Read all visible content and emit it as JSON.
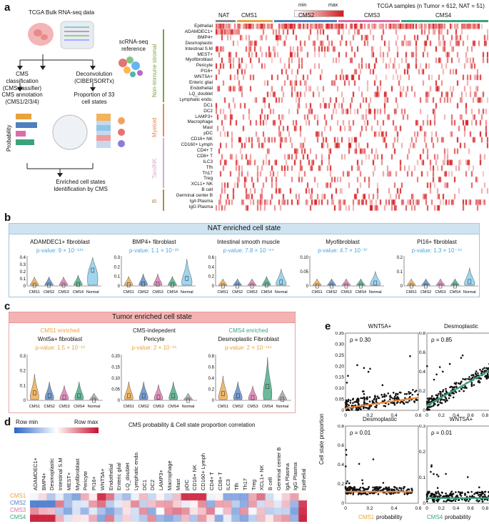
{
  "panel_a": {
    "label": "a",
    "tcga_title": "TCGA Bulk RNA-seq data",
    "scrna_title": "scRNA-seq reference",
    "cms_class": "CMS classification (CMSclassifier)",
    "deconv": "Deconvolution (CIBERSORTx)",
    "cms_annot": "CMS annotation (CMS1/2/3/4)",
    "proportion": "Proportion of 33 cell states",
    "probability": "Probability",
    "enriched": "Enriched cell states Identification by CMS",
    "heatmap_title": "TCGA samples (n Tumor = 612, NAT = 51)",
    "legend_min": "min",
    "legend_max": "max",
    "col_groups": [
      "NAT",
      "CMS1",
      "CMS2",
      "CMS3",
      "CMS4"
    ],
    "row_groups": [
      "Non-immune stromal",
      "Myeloid",
      "TandNK",
      "B"
    ],
    "rows": [
      "Epithelial",
      "ADAMDEC1+",
      "BMP4+",
      "Desmoplastic",
      "Intestinal S.M",
      "MEST+",
      "Myofibroblast",
      "Pericyte",
      "PI16+",
      "WNT5A+",
      "Enteric glial",
      "Endothelial",
      "LQ_doublet",
      "Lymphatic endo.",
      "DC1",
      "DC2",
      "LAMP3+",
      "Macrophage",
      "Mast",
      "pDC",
      "CD16+ NK",
      "CD160+ Lymph",
      "CD4+ T",
      "CD8+ T",
      "ILC3",
      "Tfh",
      "Th17",
      "Treg",
      "XCL1+ NK",
      "B cell",
      "Germinal center B",
      "IgA Plasma",
      "IgG Plasma"
    ]
  },
  "panel_b": {
    "label": "b",
    "banner": "NAT enriched cell state",
    "plots": [
      {
        "title": "ADAMDEC1+ fibroblast",
        "pvalue": "p-value: 9 × 10⁻¹³⁴",
        "yticks": [
          "0.4",
          "0.3",
          "0.2",
          "0.1",
          "0"
        ],
        "medians": [
          0.01,
          0.01,
          0.01,
          0.02,
          0.22
        ]
      },
      {
        "title": "BMP4+ fibroblast",
        "pvalue": "p-value: 1.1 × 10⁻²⁵",
        "yticks": [
          "0.3",
          "0.2",
          "0.1",
          "0"
        ],
        "medians": [
          0.01,
          0.02,
          0.02,
          0.01,
          0.08
        ]
      },
      {
        "title": "Intestinal smooth muscle",
        "pvalue": "p-value: 7.8 × 10⁻⁴⁴",
        "yticks": [
          "0.6",
          "0.4",
          "0.2",
          "0"
        ],
        "medians": [
          0.0,
          0.0,
          0.0,
          0.02,
          0.08
        ]
      },
      {
        "title": "Myofibroblast",
        "pvalue": "p-value: 4.7 × 10⁻³⁷",
        "yticks": [
          "0.10",
          "0.05",
          "0"
        ],
        "medians": [
          0.0,
          0.0,
          0.0,
          0.0,
          0.01
        ]
      },
      {
        "title": "PI16+ fibroblast",
        "pvalue": "p-value: 1.3 × 10⁻⁴⁶",
        "yticks": [
          "0.2",
          "0.1",
          "0"
        ],
        "medians": [
          0.0,
          0.0,
          0.0,
          0.0,
          0.03
        ]
      }
    ],
    "xticks": [
      "CMS1",
      "CMS2",
      "CMS3",
      "CMS4",
      "Normal"
    ]
  },
  "panel_c": {
    "label": "c",
    "banner": "Tumor enriched cell state",
    "plots": [
      {
        "header": "CMS1 enriched",
        "title": "Wnt5a+ fibroblast",
        "pvalue": "p-value: 1.5 × 10⁻¹³",
        "yticks": [
          "0.3",
          "0.2",
          "0.1",
          "0"
        ],
        "medians": [
          0.05,
          0.03,
          0.02,
          0.03,
          0.0
        ]
      },
      {
        "header": "CMS-indepedent",
        "title": "Pericyte",
        "pvalue": "p-value: 2 × 10⁻²⁵",
        "yticks": [
          "0.20",
          "0.15",
          "0.10",
          "0.05",
          "0"
        ],
        "medians": [
          0.02,
          0.02,
          0.015,
          0.02,
          0.0
        ]
      },
      {
        "header": "CMS4 enriched",
        "title": "Desmoplastic Fibroblast",
        "pvalue": "p-value: 2 × 10⁻¹¹⁵",
        "yticks": [
          "0.8",
          "0.6",
          "0.4",
          "0.2",
          "0"
        ],
        "medians": [
          0.12,
          0.08,
          0.05,
          0.25,
          0.02
        ]
      }
    ],
    "xticks": [
      "CMS1",
      "CMS2",
      "CMS3",
      "CMS4",
      "Normal"
    ]
  },
  "panel_d": {
    "label": "d",
    "legend_min": "Row min",
    "legend_max": "Row max",
    "title": "CMS probability & Cell state proportion correlation",
    "cols": [
      "ADAMDEC1+",
      "BMP4+",
      "Desmoplastic",
      "Intestinal S.M",
      "MEST+",
      "Myofibroblast",
      "Pericyte",
      "PI16+",
      "WNT5A+",
      "Endothelial",
      "Enteric glial",
      "LQ_doublet",
      "Lymphatic endo.",
      "DC1",
      "DC2",
      "LAMP3+",
      "Macrophage",
      "Mast",
      "pDC",
      "CD16+ NK",
      "CD160+ Lymph",
      "CD4+ T",
      "CD8+ T",
      "ILC3",
      "Tfh",
      "Th17",
      "Treg",
      "XCL1+ NK",
      "B cell",
      "Germinal center B",
      "IgA Plasma",
      "IgG Plasma",
      "Epithelial"
    ],
    "rows": [
      "CMS1",
      "CMS2",
      "CMS3",
      "CMS4"
    ],
    "row_colors": [
      "#e8a33d",
      "#4f7fbf",
      "#d86fa8",
      "#3aa37a"
    ]
  },
  "panel_e": {
    "label": "e",
    "ylabel": "Cell state proportion",
    "plots": [
      {
        "title": "WNT5A+",
        "rho": "ρ = 0.30",
        "xticks": [
          "0",
          "0.2",
          "0.4",
          "0.6"
        ],
        "yticks": [
          "0.35",
          "0.30",
          "0.25",
          "0.20",
          "0.15",
          "0.10",
          "0.05",
          "0"
        ],
        "line": "#f08a3c"
      },
      {
        "title": "Desmoplastic",
        "rho": "ρ = 0.85",
        "xticks": [
          "0",
          "0.2",
          "0.4",
          "0.6",
          "0.8",
          "1"
        ],
        "yticks": [
          "0.8",
          "0.6",
          "0.4",
          "0.2",
          "0"
        ],
        "line": "#3aa37a"
      },
      {
        "title": "Desmoplastic",
        "rho": "ρ = 0.01",
        "xticks": [
          "0",
          "0.2",
          "0.4",
          "0.6"
        ],
        "yticks": [
          "0.8",
          "0.6",
          "0.4",
          "0.2",
          "0"
        ],
        "line": "#f08a3c"
      },
      {
        "title": "WNT5A+",
        "rho": "ρ = 0.01",
        "xticks": [
          "0",
          "0.2",
          "0.4",
          "0.6",
          "0.8",
          "1"
        ],
        "yticks": [
          "0.3",
          "0.2",
          "0.1",
          "0"
        ],
        "line": "#3aa37a"
      }
    ],
    "xlabel_left_cms": "CMS1",
    "xlabel_right_cms": "CMS4",
    "xlabel_suffix": "probability"
  }
}
